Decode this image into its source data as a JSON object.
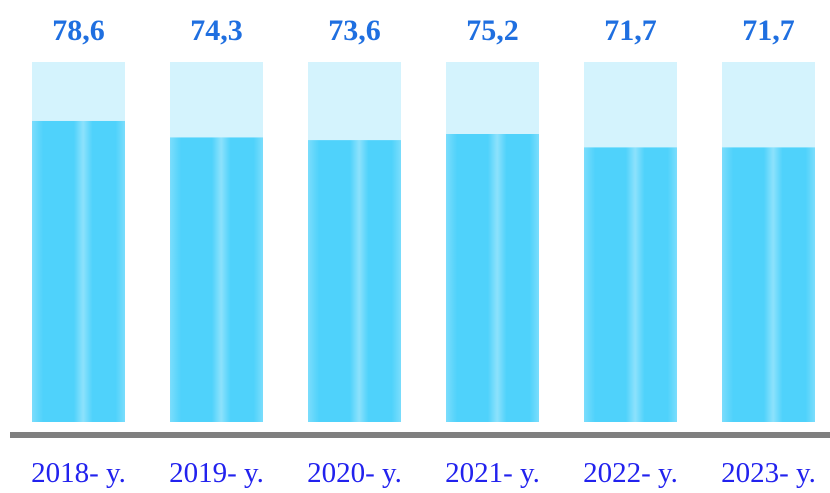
{
  "chart_data": {
    "type": "bar",
    "categories": [
      "2018- y.",
      "2019- y.",
      "2020- y.",
      "2021- y.",
      "2022- y.",
      "2023- y."
    ],
    "values": [
      78.6,
      74.3,
      73.6,
      75.2,
      71.7,
      71.7
    ],
    "value_labels": [
      "78,6",
      "74,3",
      "73,6",
      "75,2",
      "71,7",
      "71,7"
    ],
    "color": "#4fd2fb",
    "ylim": [
      0,
      94
    ]
  }
}
